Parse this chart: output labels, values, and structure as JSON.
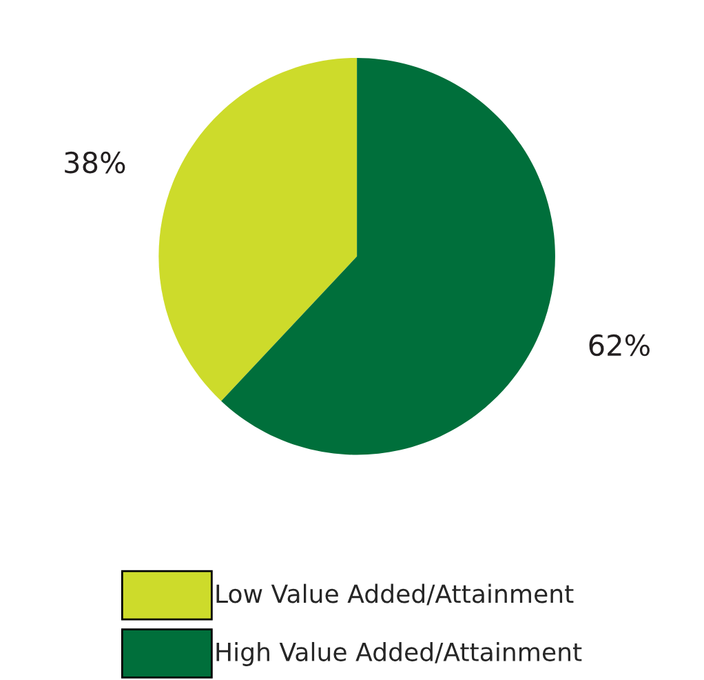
{
  "chart_data": {
    "type": "pie",
    "categories": [
      "Low Value Added/Attainment",
      "High Value Added/Attainment"
    ],
    "values": [
      38,
      62
    ],
    "colors": [
      "#cddb2b",
      "#006f3b"
    ],
    "value_labels": [
      "38%",
      "62%"
    ],
    "legend": "bottom"
  }
}
